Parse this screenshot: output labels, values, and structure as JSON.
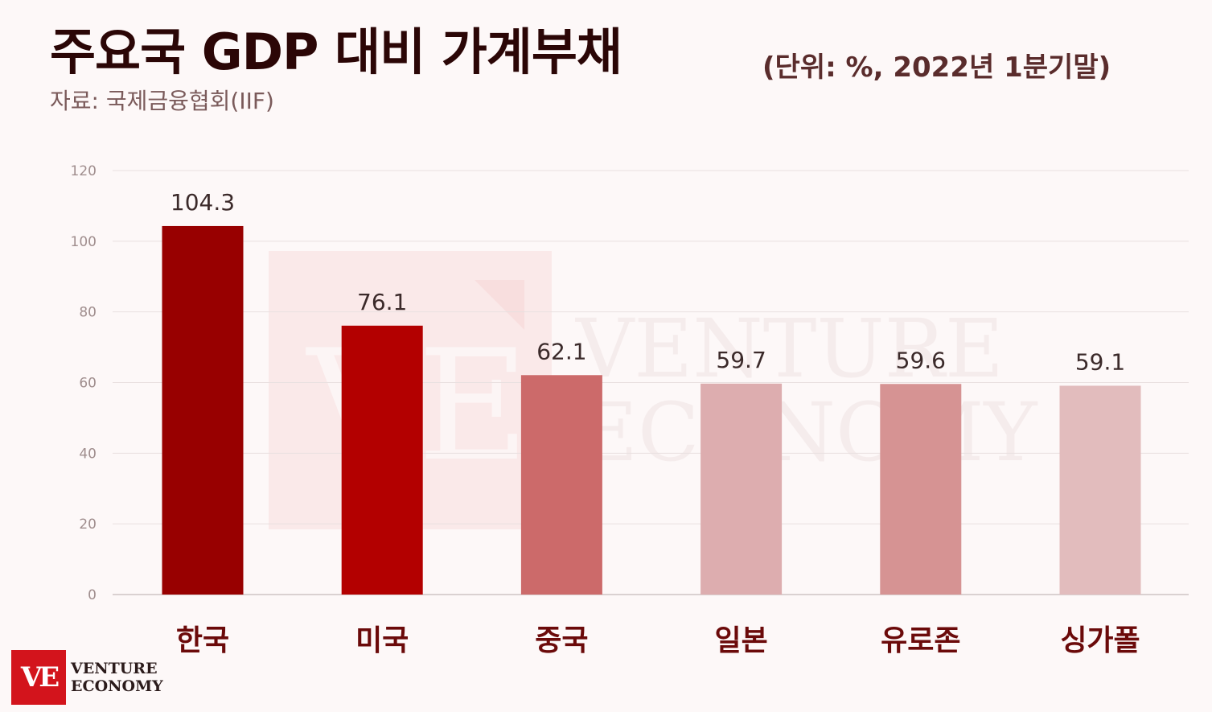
{
  "header": {
    "title": "주요국 GDP 대비 가계부채",
    "unit": "(단위: %, 2022년 1분기말)",
    "source": "자료: 국제금융협회(IIF)"
  },
  "chart_data": {
    "type": "bar",
    "title": "주요국 GDP 대비 가계부채",
    "categories": [
      "한국",
      "미국",
      "중국",
      "일본",
      "유로존",
      "싱가폴"
    ],
    "values": [
      104.3,
      76.1,
      62.1,
      59.7,
      59.6,
      59.1
    ],
    "value_labels": [
      "104.3",
      "76.1",
      "62.1",
      "59.7",
      "59.6",
      "59.1"
    ],
    "bar_colors": [
      "#980000",
      "#b30000",
      "#cc6a6a",
      "#ddadaf",
      "#d69393",
      "#e2bcbd"
    ],
    "ylim": [
      0,
      120
    ],
    "yticks": [
      0,
      20,
      40,
      60,
      80,
      100,
      120
    ],
    "grid": true,
    "xlabel": "",
    "ylabel": ""
  },
  "logo": {
    "mark": "VE",
    "line1": "VENTURE",
    "line2": "ECONOMY"
  },
  "watermark": {
    "line1": "VENTURE",
    "line2": "ECONOMY",
    "mark": "VE"
  }
}
